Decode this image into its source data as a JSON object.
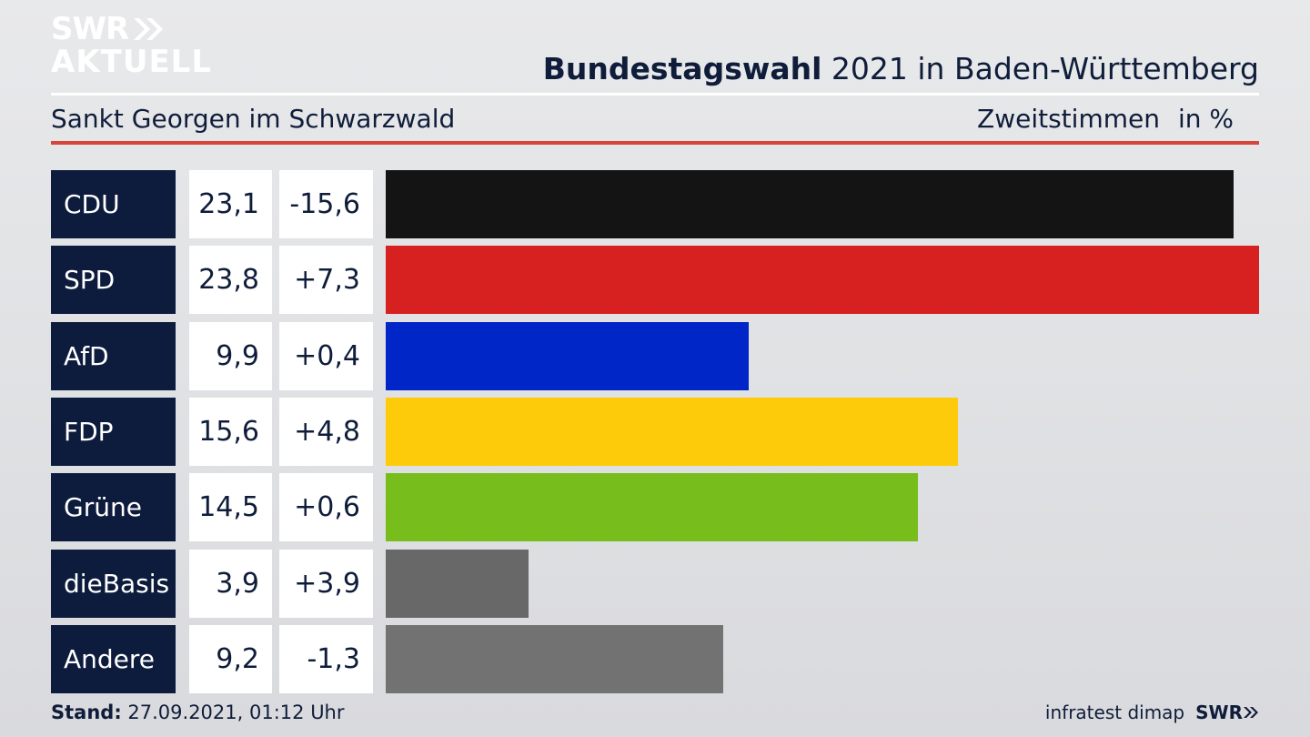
{
  "brand": {
    "line1": "SWR",
    "line2": "AKTUELL",
    "footer_logo": "SWR"
  },
  "header": {
    "title_bold": "Bundestagswahl",
    "title_rest": "2021 in Baden-Württemberg",
    "location": "Sankt Georgen im Schwarzwald",
    "measure": "Zweitstimmen",
    "unit": "in %"
  },
  "footer": {
    "stand_label": "Stand:",
    "stand_value": "27.09.2021, 01:12 Uhr",
    "source": "infratest dimap"
  },
  "colors": {
    "accent_rule": "#d6453a",
    "label_bg": "#0d1b3d"
  },
  "chart_data": {
    "type": "bar",
    "title": "Bundestagswahl 2021 in Baden-Württemberg",
    "categories": [
      "CDU",
      "SPD",
      "AfD",
      "FDP",
      "Grüne",
      "dieBasis",
      "Andere"
    ],
    "values": [
      23.1,
      23.8,
      9.9,
      15.6,
      14.5,
      3.9,
      9.2
    ],
    "value_labels": [
      "23,1",
      "23,8",
      "9,9",
      "15,6",
      "14,5",
      "3,9",
      "9,2"
    ],
    "change_labels": [
      "-15,6",
      "+7,3",
      "+0,4",
      "+4,8",
      "+0,6",
      "+3,9",
      "-1,3"
    ],
    "changes": [
      -15.6,
      7.3,
      0.4,
      4.8,
      0.6,
      3.9,
      -1.3
    ],
    "colors": [
      "#141414",
      "#d72020",
      "#0026c8",
      "#fecb0a",
      "#77bd1c",
      "#686868",
      "#727272"
    ],
    "orientation": "horizontal",
    "xlim": [
      0,
      23.8
    ],
    "unit": "in %"
  }
}
